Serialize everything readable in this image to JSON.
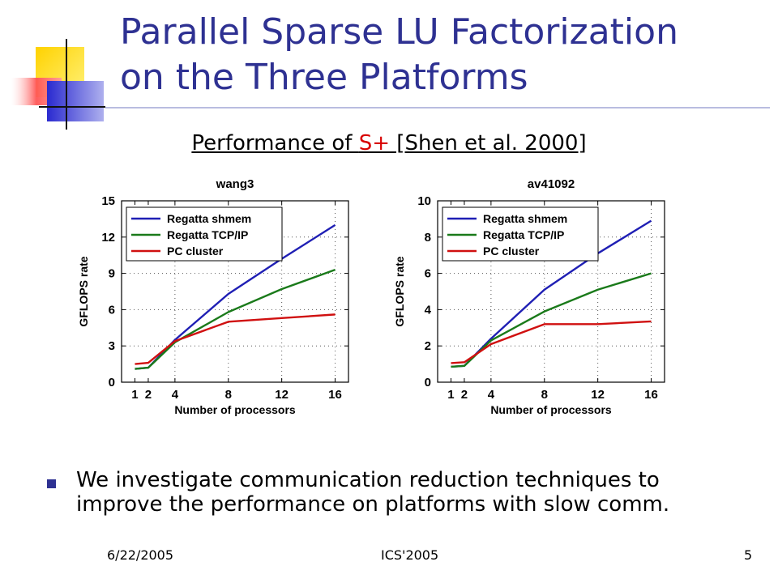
{
  "slide": {
    "title_line1": "Parallel Sparse LU Factorization",
    "title_line2": "on the Three Platforms",
    "subtitle_pre": "Performance of ",
    "subtitle_red": "S+",
    "subtitle_post": " [Shen et al. 2000]",
    "bullet": "We investigate communication reduction techniques to improve the performance on platforms with slow comm.",
    "footer": {
      "date": "6/22/2005",
      "conference": "ICS'2005",
      "page": "5"
    },
    "colors": {
      "title": "#2E3192",
      "accent_red": "#d80000",
      "bullet": "#2E3192"
    },
    "decoration": "overlapping-squares-logo"
  },
  "chart_data": [
    {
      "type": "line",
      "title": "wang3",
      "xlabel": "Number of processors",
      "ylabel": "GFLOPS rate",
      "x": [
        1,
        2,
        4,
        8,
        12,
        16
      ],
      "xticks": [
        1,
        2,
        4,
        8,
        12,
        16
      ],
      "xlim": [
        0,
        17
      ],
      "ylim": [
        0,
        15
      ],
      "yticks": [
        0,
        3,
        6,
        9,
        12,
        15
      ],
      "grid": true,
      "legend_position": "top-left",
      "series": [
        {
          "name": "Regatta  shmem",
          "color": "#1f1fb4",
          "values": [
            1.1,
            1.2,
            3.5,
            7.3,
            10.2,
            13.0
          ]
        },
        {
          "name": "Regatta  TCP/IP",
          "color": "#1a7a1a",
          "values": [
            1.1,
            1.2,
            3.3,
            5.8,
            7.7,
            9.3
          ]
        },
        {
          "name": "PC cluster",
          "color": "#d01010",
          "values": [
            1.5,
            1.6,
            3.4,
            5.0,
            5.3,
            5.6
          ]
        }
      ]
    },
    {
      "type": "line",
      "title": "av41092",
      "xlabel": "Number of processors",
      "ylabel": "GFLOPS rate",
      "x": [
        1,
        2,
        4,
        8,
        12,
        16
      ],
      "xticks": [
        1,
        2,
        4,
        8,
        12,
        16
      ],
      "xlim": [
        0,
        17
      ],
      "ylim": [
        0,
        10
      ],
      "yticks": [
        0,
        2,
        4,
        6,
        8,
        10
      ],
      "grid": true,
      "legend_position": "top-left",
      "series": [
        {
          "name": "Regatta  shmem",
          "color": "#1f1fb4",
          "values": [
            0.85,
            0.9,
            2.4,
            5.1,
            7.1,
            8.9
          ]
        },
        {
          "name": "Regatta  TCP/IP",
          "color": "#1a7a1a",
          "values": [
            0.85,
            0.9,
            2.3,
            3.9,
            5.1,
            6.0
          ]
        },
        {
          "name": "PC cluster",
          "color": "#d01010",
          "values": [
            1.05,
            1.1,
            2.1,
            3.2,
            3.2,
            3.35
          ]
        }
      ]
    }
  ]
}
